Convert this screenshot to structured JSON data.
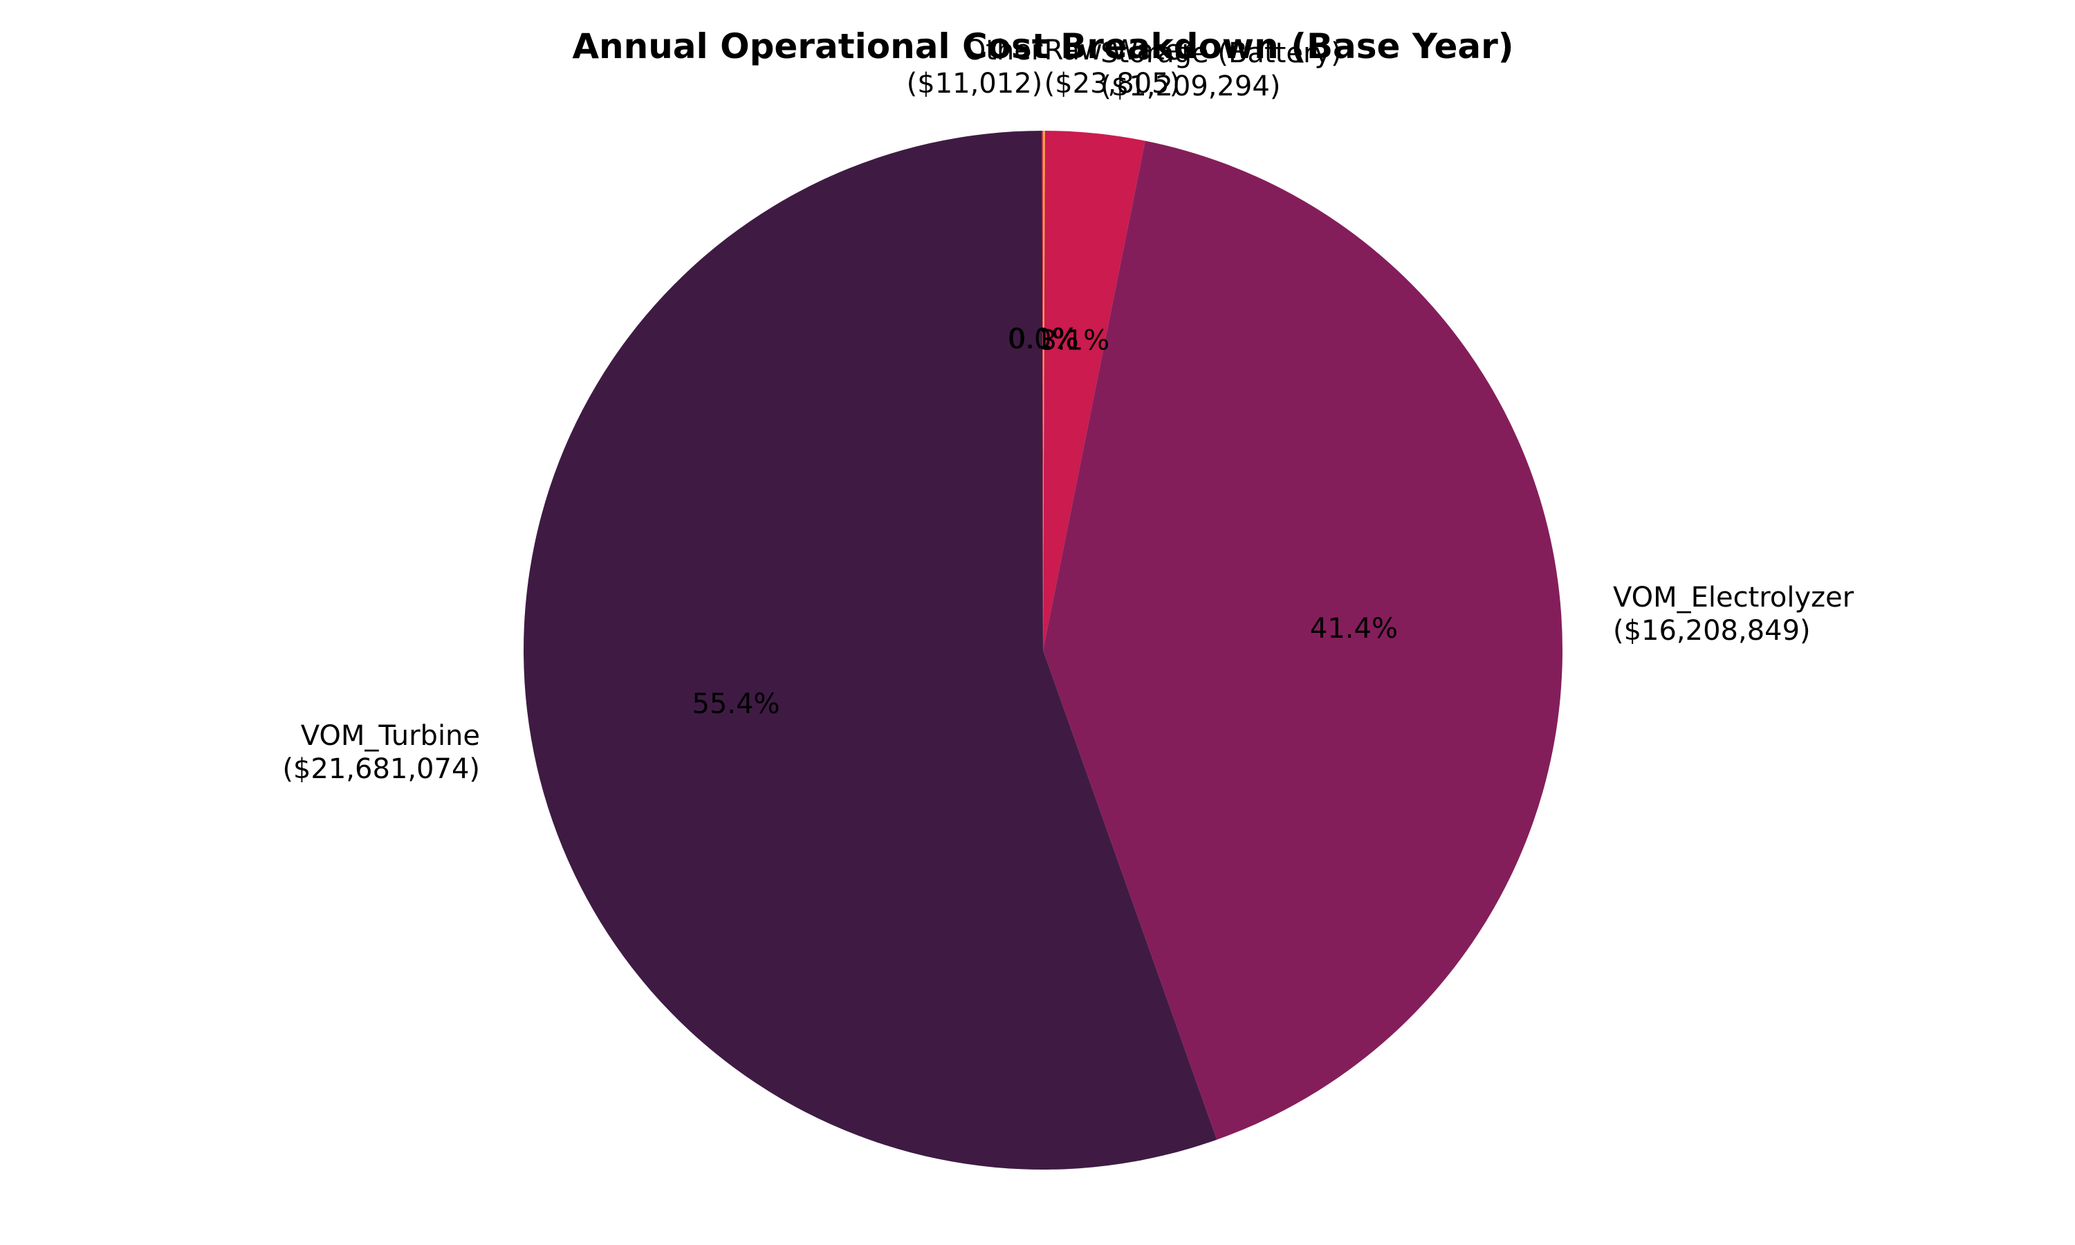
{
  "chart_data": {
    "type": "pie",
    "title": "Annual Operational Cost Breakdown (Base Year)",
    "start_angle_deg": 90,
    "direction": "clockwise",
    "slices": [
      {
        "label": "Raw Water",
        "value_label": "($23,805)",
        "value": 23805,
        "pct_label": "0.1%",
        "color": "#f9a242"
      },
      {
        "label": "Storage (Battery)",
        "value_label": "($1,209,294)",
        "value": 1209294,
        "pct_label": "3.1%",
        "color": "#cb1b4f"
      },
      {
        "label": "VOM_Electrolyzer",
        "value_label": "($16,208,849)",
        "value": 16208849,
        "pct_label": "41.4%",
        "color": "#841e5a"
      },
      {
        "label": "VOM_Turbine",
        "value_label": "($21,681,074)",
        "value": 21681074,
        "pct_label": "55.4%",
        "color": "#3f1b44"
      },
      {
        "label": "Other",
        "value_label": "($11,012)",
        "value": 11012,
        "pct_label": "0.0%",
        "color": "#e83f3f"
      }
    ]
  }
}
